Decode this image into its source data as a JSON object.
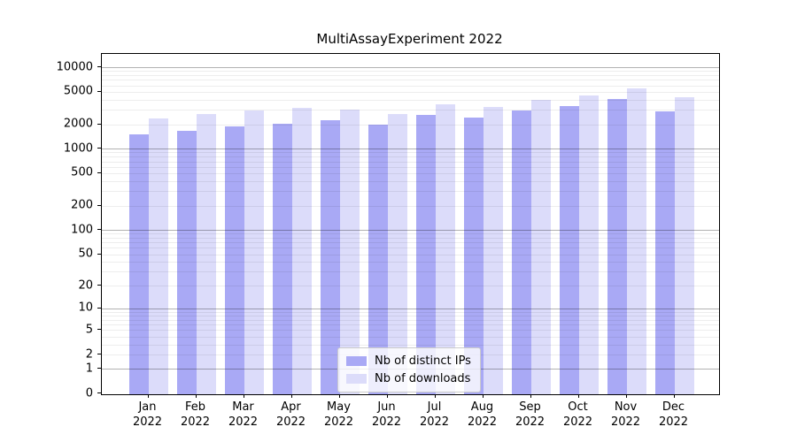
{
  "chart_data": {
    "type": "bar",
    "title": "MultiAssayExperiment 2022",
    "categories": [
      "Jan",
      "Feb",
      "Mar",
      "Apr",
      "May",
      "Jun",
      "Jul",
      "Aug",
      "Sep",
      "Oct",
      "Nov",
      "Dec"
    ],
    "year_label": "2022",
    "series": [
      {
        "name": "Nb of distinct IPs",
        "color": "#a9a9f5",
        "values": [
          1520,
          1640,
          1890,
          2010,
          2240,
          2000,
          2600,
          2420,
          2920,
          3300,
          4070,
          2870
        ]
      },
      {
        "name": "Nb of downloads",
        "color": "#dcdcfa",
        "values": [
          2350,
          2680,
          2920,
          3160,
          3050,
          2690,
          3500,
          3240,
          3940,
          4540,
          5550,
          4300
        ]
      }
    ],
    "y_ticks": [
      0,
      1,
      2,
      5,
      10,
      20,
      50,
      100,
      200,
      500,
      1000,
      2000,
      5000,
      10000
    ],
    "y_scale": "log1p",
    "ylim": [
      0,
      10000
    ],
    "xlabel": "",
    "ylabel": "",
    "grid": true,
    "legend_position": "lower center"
  }
}
